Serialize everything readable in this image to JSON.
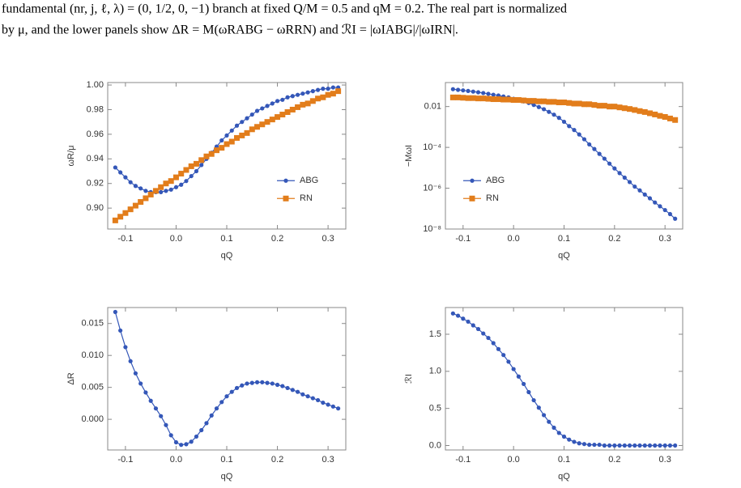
{
  "caption": [
    "fundamental (nr, j, ℓ, λ) = (0, 1/2, 0, −1) branch at fixed Q/M = 0.5 and qM = 0.2. The real part is normalized",
    "by μ, and the lower panels show ΔR = M(ωRABG − ωRRN) and ℛI = |ωIABG|/|ωIRN|."
  ],
  "chart_data": [
    {
      "type": "line",
      "xlabel": "qQ",
      "ylabel": "ωR/μ",
      "legend": "right",
      "xlim": [
        -0.135,
        0.335
      ],
      "xticks": [
        -0.1,
        {
          "value": 0,
          "label": "0.0"
        },
        0.1,
        0.2,
        0.3
      ],
      "ylim": [
        0.883,
        1.002
      ],
      "yticks": [
        {
          "value": 0.9,
          "label": "0.90"
        },
        {
          "value": 0.92,
          "label": "0.92"
        },
        {
          "value": 0.94,
          "label": "0.94"
        },
        {
          "value": 0.96,
          "label": "0.96"
        },
        {
          "value": 0.98,
          "label": "0.98"
        },
        {
          "value": 1,
          "label": "1.00"
        }
      ],
      "x": [
        -0.12,
        -0.11,
        -0.1,
        -0.09,
        -0.08,
        -0.07,
        -0.06,
        -0.05,
        -0.04,
        -0.03,
        -0.02,
        -0.01,
        0,
        0.01,
        0.02,
        0.03,
        0.04,
        0.05,
        0.06,
        0.07,
        0.08,
        0.09,
        0.1,
        0.11,
        0.12,
        0.13,
        0.14,
        0.15,
        0.16,
        0.17,
        0.18,
        0.19,
        0.2,
        0.21,
        0.22,
        0.23,
        0.24,
        0.25,
        0.26,
        0.27,
        0.28,
        0.29,
        0.3,
        0.31,
        0.32
      ],
      "series": [
        {
          "name": "ABG",
          "color": "#3457b8",
          "marker": "circle",
          "values": [
            0.933,
            0.929,
            0.925,
            0.921,
            0.918,
            0.916,
            0.914,
            0.913,
            0.913,
            0.913,
            0.914,
            0.915,
            0.917,
            0.919,
            0.922,
            0.926,
            0.93,
            0.935,
            0.94,
            0.945,
            0.95,
            0.955,
            0.959,
            0.963,
            0.967,
            0.97,
            0.973,
            0.976,
            0.979,
            0.981,
            0.983,
            0.985,
            0.987,
            0.988,
            0.99,
            0.991,
            0.992,
            0.993,
            0.994,
            0.995,
            0.996,
            0.997,
            0.997,
            0.998,
            0.998
          ]
        },
        {
          "name": "RN",
          "color": "#e27d1b",
          "marker": "square",
          "values": [
            0.89,
            0.893,
            0.896,
            0.899,
            0.902,
            0.905,
            0.908,
            0.911,
            0.914,
            0.917,
            0.92,
            0.922,
            0.925,
            0.928,
            0.931,
            0.934,
            0.936,
            0.939,
            0.942,
            0.944,
            0.947,
            0.949,
            0.952,
            0.954,
            0.957,
            0.959,
            0.961,
            0.964,
            0.966,
            0.968,
            0.97,
            0.972,
            0.974,
            0.976,
            0.978,
            0.98,
            0.982,
            0.984,
            0.985,
            0.987,
            0.989,
            0.99,
            0.992,
            0.993,
            0.995
          ]
        }
      ]
    },
    {
      "type": "line",
      "xlabel": "qQ",
      "ylabel": "−MωI",
      "legend": "left",
      "yscale": "log",
      "xlim": [
        -0.135,
        0.335
      ],
      "xticks": [
        -0.1,
        {
          "value": 0,
          "label": "0.0"
        },
        0.1,
        0.2,
        0.3
      ],
      "ylim": [
        1e-08,
        0.15
      ],
      "yticks": [
        {
          "value": 1e-08,
          "label": "10⁻⁸"
        },
        {
          "value": 1e-06,
          "label": "10⁻⁶"
        },
        {
          "value": 0.0001,
          "label": "10⁻⁴"
        },
        0.01
      ],
      "x": [
        -0.12,
        -0.11,
        -0.1,
        -0.09,
        -0.08,
        -0.07,
        -0.06,
        -0.05,
        -0.04,
        -0.03,
        -0.02,
        -0.01,
        0,
        0.01,
        0.02,
        0.03,
        0.04,
        0.05,
        0.06,
        0.07,
        0.08,
        0.09,
        0.1,
        0.11,
        0.12,
        0.13,
        0.14,
        0.15,
        0.16,
        0.17,
        0.18,
        0.19,
        0.2,
        0.21,
        0.22,
        0.23,
        0.24,
        0.25,
        0.26,
        0.27,
        0.28,
        0.29,
        0.3,
        0.31,
        0.32
      ],
      "series": [
        {
          "name": "ABG",
          "color": "#3457b8",
          "marker": "circle",
          "values": [
            0.071,
            0.066,
            0.062,
            0.058,
            0.054,
            0.05,
            0.046,
            0.042,
            0.038,
            0.035,
            0.031,
            0.028,
            0.024,
            0.021,
            0.018,
            0.015,
            0.012,
            0.0095,
            0.0074,
            0.0055,
            0.004,
            0.0028,
            0.0018,
            0.0011,
            0.00071,
            0.00043,
            0.00025,
            0.00014,
            8.3e-05,
            4.8e-05,
            2.8e-05,
            1.6e-05,
            9.3e-06,
            5.5e-06,
            3.3e-06,
            2e-06,
            1.2e-06,
            7.8e-07,
            4.9e-07,
            3.2e-07,
            2e-07,
            1.3e-07,
            8.5e-08,
            5.4e-08,
            3.2e-08
          ]
        },
        {
          "name": "RN",
          "color": "#e27d1b",
          "marker": "square",
          "values": [
            0.028,
            0.028,
            0.027,
            0.026,
            0.026,
            0.025,
            0.025,
            0.024,
            0.023,
            0.023,
            0.022,
            0.022,
            0.021,
            0.021,
            0.02,
            0.019,
            0.019,
            0.018,
            0.018,
            0.017,
            0.017,
            0.016,
            0.016,
            0.015,
            0.014,
            0.014,
            0.013,
            0.013,
            0.012,
            0.011,
            0.011,
            0.01,
            0.01,
            0.0091,
            0.0083,
            0.0076,
            0.0068,
            0.006,
            0.0054,
            0.0047,
            0.0041,
            0.0035,
            0.0031,
            0.0026,
            0.0022
          ]
        }
      ]
    },
    {
      "type": "line",
      "xlabel": "qQ",
      "ylabel": "ΔR",
      "color": "#3457b8",
      "xlim": [
        -0.135,
        0.335
      ],
      "xticks": [
        -0.1,
        {
          "value": 0,
          "label": "0.0"
        },
        0.1,
        0.2,
        0.3
      ],
      "ylim": [
        -0.0048,
        0.0175
      ],
      "yticks": [
        {
          "value": 0,
          "label": "0.000"
        },
        0.005,
        {
          "value": 0.01,
          "label": "0.010"
        },
        0.015
      ],
      "x": [
        -0.12,
        -0.11,
        -0.1,
        -0.09,
        -0.08,
        -0.07,
        -0.06,
        -0.05,
        -0.04,
        -0.03,
        -0.02,
        -0.01,
        0,
        0.01,
        0.02,
        0.03,
        0.04,
        0.05,
        0.06,
        0.07,
        0.08,
        0.09,
        0.1,
        0.11,
        0.12,
        0.13,
        0.14,
        0.15,
        0.16,
        0.17,
        0.18,
        0.19,
        0.2,
        0.21,
        0.22,
        0.23,
        0.24,
        0.25,
        0.26,
        0.27,
        0.28,
        0.29,
        0.3,
        0.31,
        0.32
      ],
      "values": [
        0.0168,
        0.0139,
        0.0113,
        0.0091,
        0.0072,
        0.0056,
        0.0042,
        0.0029,
        0.0017,
        0.0005,
        -0.0009,
        -0.0025,
        -0.0036,
        -0.004,
        -0.0039,
        -0.0035,
        -0.0027,
        -0.0017,
        -0.0006,
        0.0006,
        0.0017,
        0.0027,
        0.0036,
        0.0043,
        0.0049,
        0.0053,
        0.0056,
        0.0057,
        0.0058,
        0.0058,
        0.0057,
        0.0056,
        0.0054,
        0.0052,
        0.0049,
        0.0046,
        0.0043,
        0.0039,
        0.0036,
        0.0033,
        0.003,
        0.0026,
        0.0023,
        0.002,
        0.0017
      ]
    },
    {
      "type": "line",
      "xlabel": "qQ",
      "ylabel": "ℛI",
      "color": "#3457b8",
      "xlim": [
        -0.135,
        0.335
      ],
      "xticks": [
        -0.1,
        {
          "value": 0,
          "label": "0.0"
        },
        0.1,
        0.2,
        0.3
      ],
      "ylim": [
        -0.06,
        1.86
      ],
      "yticks": [
        {
          "value": 0,
          "label": "0.0"
        },
        0.5,
        {
          "value": 1,
          "label": "1.0"
        },
        1.5
      ],
      "x": [
        -0.12,
        -0.11,
        -0.1,
        -0.09,
        -0.08,
        -0.07,
        -0.06,
        -0.05,
        -0.04,
        -0.03,
        -0.02,
        -0.01,
        0,
        0.01,
        0.02,
        0.03,
        0.04,
        0.05,
        0.06,
        0.07,
        0.08,
        0.09,
        0.1,
        0.11,
        0.12,
        0.13,
        0.14,
        0.15,
        0.16,
        0.17,
        0.18,
        0.19,
        0.2,
        0.21,
        0.22,
        0.23,
        0.24,
        0.25,
        0.26,
        0.27,
        0.28,
        0.29,
        0.3,
        0.31,
        0.32
      ],
      "values": [
        1.78,
        1.75,
        1.71,
        1.67,
        1.62,
        1.57,
        1.51,
        1.45,
        1.38,
        1.3,
        1.22,
        1.13,
        1.03,
        0.93,
        0.83,
        0.72,
        0.61,
        0.51,
        0.41,
        0.32,
        0.24,
        0.17,
        0.12,
        0.08,
        0.05,
        0.03,
        0.02,
        0.01,
        0.01,
        0.01,
        0,
        0,
        0,
        0,
        0,
        0,
        0,
        0,
        0,
        0,
        0,
        0,
        0,
        0,
        0
      ]
    }
  ]
}
